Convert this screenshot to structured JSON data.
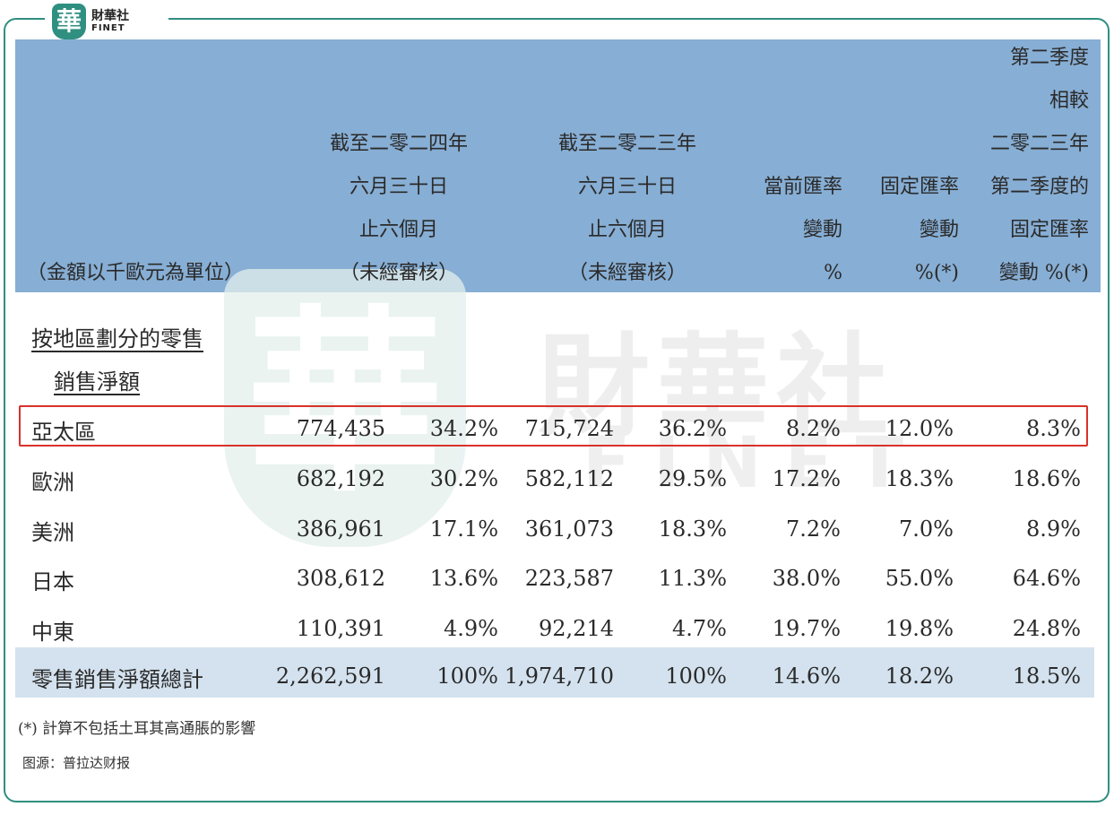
{
  "logo": {
    "cn": "財華社",
    "en": "FINET",
    "seal_char": "華"
  },
  "watermark": {
    "seal_char": "華",
    "cn": "財華社",
    "en": "FINET"
  },
  "header": {
    "unit": "（金額以千歐元為單位）",
    "col_2024": [
      "截至二零二四年",
      "六月三十日",
      "止六個月",
      "（未經審核）"
    ],
    "col_2023": [
      "截至二零二三年",
      "六月三十日",
      "止六個月",
      "（未經審核）"
    ],
    "col_current": [
      "當前匯率",
      "變動",
      "%"
    ],
    "col_constant": [
      "固定匯率",
      "變動",
      "%(*)"
    ],
    "col_q2": [
      "第二季度",
      "相較",
      "二零二三年",
      "第二季度的",
      "固定匯率",
      "變動 %(*)"
    ]
  },
  "section": {
    "line1": "按地區劃分的零售",
    "line2": "銷售淨額"
  },
  "rows": [
    {
      "label": "亞太區",
      "v2024": "774,435",
      "p2024": "34.2%",
      "v2023": "715,724",
      "p2023": "36.2%",
      "current": "8.2%",
      "constant": "12.0%",
      "q2": "8.3%"
    },
    {
      "label": "歐洲",
      "v2024": "682,192",
      "p2024": "30.2%",
      "v2023": "582,112",
      "p2023": "29.5%",
      "current": "17.2%",
      "constant": "18.3%",
      "q2": "18.6%"
    },
    {
      "label": "美洲",
      "v2024": "386,961",
      "p2024": "17.1%",
      "v2023": "361,073",
      "p2023": "18.3%",
      "current": "7.2%",
      "constant": "7.0%",
      "q2": "8.9%"
    },
    {
      "label": "日本",
      "v2024": "308,612",
      "p2024": "13.6%",
      "v2023": "223,587",
      "p2023": "11.3%",
      "current": "38.0%",
      "constant": "55.0%",
      "q2": "64.6%"
    },
    {
      "label": "中東",
      "v2024": "110,391",
      "p2024": "4.9%",
      "v2023": "92,214",
      "p2023": "4.7%",
      "current": "19.7%",
      "constant": "19.8%",
      "q2": "24.8%"
    }
  ],
  "total": {
    "label": "零售銷售淨額總計",
    "v2024": "2,262,591",
    "p2024": "100%",
    "v2023": "1,974,710",
    "p2023": "100%",
    "current": "14.6%",
    "constant": "18.2%",
    "q2": "18.5%"
  },
  "footnote": "(*) 計算不包括土耳其高通脹的影響",
  "source": "图源：普拉达财报",
  "colors": {
    "header_band": "#87aed4",
    "total_band": "#d4e2ef",
    "highlight_border": "#d9322a",
    "frame": "#2f8f80"
  }
}
